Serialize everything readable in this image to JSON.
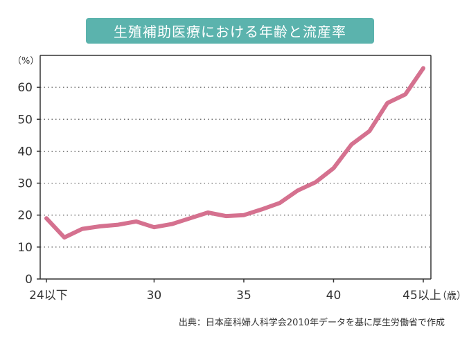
{
  "colors": {
    "title_bg": "#5bb3ad",
    "line": "#d5718f",
    "axis": "#333333",
    "grid": "#555555"
  },
  "chart_data": {
    "type": "line",
    "title": "生殖補助医療における年齢と流産率",
    "y_unit_label": "（%）",
    "x_unit_label": "（歳）",
    "x_first_label": "24以下",
    "x_last_label": "45以上",
    "xlim": [
      24,
      45
    ],
    "ylim": [
      0,
      70
    ],
    "x_ticks": [
      30,
      35,
      40
    ],
    "y_ticks": [
      0,
      10,
      20,
      30,
      40,
      50,
      60
    ],
    "grid": "horizontal-dotted",
    "series": [
      {
        "x": [
          24,
          25,
          26,
          27,
          28,
          29,
          30,
          31,
          32,
          33,
          34,
          35,
          36,
          37,
          38,
          39,
          40,
          41,
          42,
          43,
          44,
          45
        ],
        "values": [
          19,
          13,
          15.7,
          16.5,
          17,
          18,
          16.2,
          17.2,
          19,
          20.8,
          19.7,
          20,
          21.8,
          23.8,
          27.7,
          30.3,
          34.7,
          42.1,
          46.3,
          55.1,
          57.8,
          66
        ]
      }
    ],
    "source": "出典：日本産科婦人科学会2010年データを基に厚生労働省で作成"
  }
}
